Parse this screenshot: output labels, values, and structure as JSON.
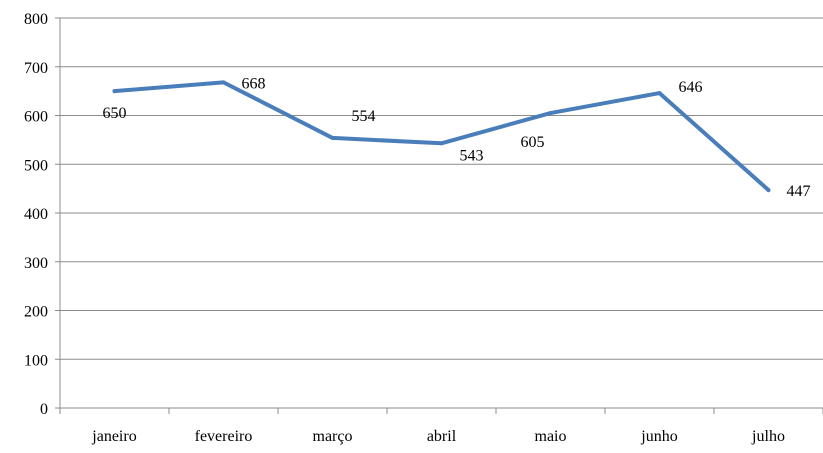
{
  "chart_data": {
    "type": "line",
    "title": "",
    "xlabel": "",
    "ylabel": "",
    "categories": [
      "janeiro",
      "fevereiro",
      "março",
      "abril",
      "maio",
      "junho",
      "julho"
    ],
    "series": [
      {
        "values": [
          650,
          668,
          554,
          543,
          605,
          646,
          447
        ],
        "color": "#4a7ebb"
      }
    ],
    "data_labels": [
      "650",
      "668",
      "554",
      "543",
      "605",
      "646",
      "447"
    ],
    "ylim": [
      0,
      800
    ],
    "yticks": [
      0,
      100,
      200,
      300,
      400,
      500,
      600,
      700,
      800
    ],
    "ytick_labels": [
      "0",
      "100",
      "200",
      "300",
      "400",
      "500",
      "600",
      "700",
      "800"
    ],
    "grid": true,
    "gridline_color": "#8c8c8c",
    "legend": "none"
  }
}
